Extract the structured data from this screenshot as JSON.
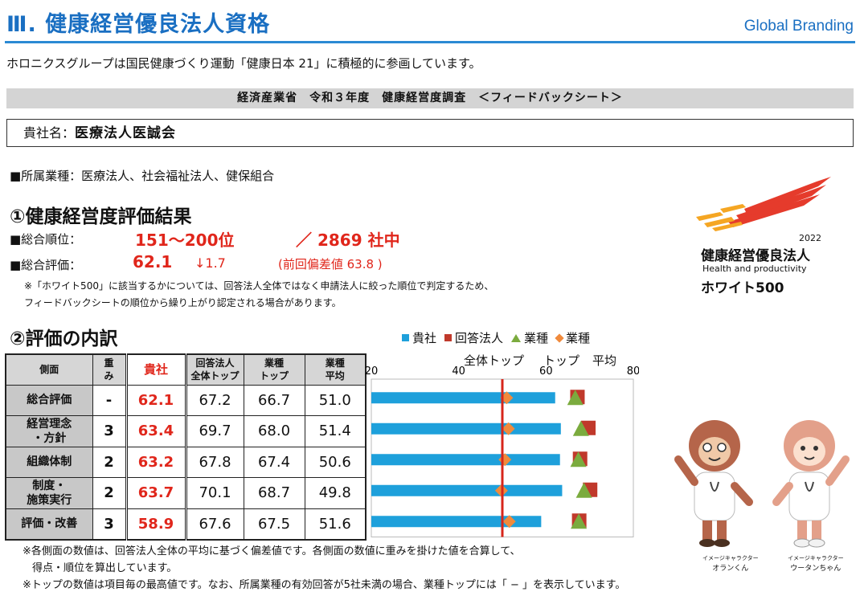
{
  "header": {
    "title": "Ⅲ. 健康経営優良法人資格",
    "brand": "Global Branding"
  },
  "intro": "ホロニクスグループは国民健康づくり運動「健康日本 21」に積極的に参画しています。",
  "banner": "経済産業省　令和３年度　健康経営度調査　＜フィードバックシート＞",
  "company": {
    "label": "貴社名：",
    "name": "医療法人医誠会"
  },
  "industry": "■所属業種：医療法人、社会福祉法人、健保組合",
  "section1": {
    "heading": "①健康経営度評価結果",
    "rank_label": "■総合順位：",
    "rank_value": "151〜200位",
    "rank_total": "／ 2869 社中",
    "score_label": "■総合評価：",
    "score_value": "62.1",
    "score_delta": "↓1.7",
    "score_prev": "(前回偏差値 63.8 )",
    "note_line1": "※「ホワイト500」に該当するかについては、回答法人全体ではなく申請法人に絞った順位で判定するため、",
    "note_line2": "フィードバックシートの順位から繰り上がり認定される場合があります。"
  },
  "logo": {
    "year": "2022",
    "title_jp": "健康経営優良法人",
    "title_en": "Health and productivity",
    "category": "ホワイト500",
    "accent_red": "#e53b2c",
    "accent_orange": "#f5a623"
  },
  "section2": {
    "heading": "②評価の内訳",
    "legend": {
      "own": "貴社",
      "all": "回答法人",
      "ind_top": "業種",
      "ind_avg": "業種"
    },
    "legend_sub": {
      "all": "全体トップ",
      "ind_top": "トップ",
      "ind_avg": "平均"
    },
    "table": {
      "headers": {
        "side": "側面",
        "weight_1": "重",
        "weight_2": "み",
        "own": "貴社",
        "all_top_1": "回答法人",
        "all_top_2": "全体トップ",
        "ind_top_1": "業種",
        "ind_top_2": "トップ",
        "ind_avg_1": "業種",
        "ind_avg_2": "平均"
      },
      "rows": [
        {
          "side_1": "総合評価",
          "side_2": "",
          "weight": "-",
          "own": "62.1",
          "all_top": "67.2",
          "ind_top": "66.7",
          "ind_avg": "51.0"
        },
        {
          "side_1": "経営理念",
          "side_2": "・方針",
          "weight": "3",
          "own": "63.4",
          "all_top": "69.7",
          "ind_top": "68.0",
          "ind_avg": "51.4"
        },
        {
          "side_1": "組織体制",
          "side_2": "",
          "weight": "2",
          "own": "63.2",
          "all_top": "67.8",
          "ind_top": "67.4",
          "ind_avg": "50.6"
        },
        {
          "side_1": "制度・",
          "side_2": "施策実行",
          "weight": "2",
          "own": "63.7",
          "all_top": "70.1",
          "ind_top": "68.7",
          "ind_avg": "49.8"
        },
        {
          "side_1": "評価・改善",
          "side_2": "",
          "weight": "3",
          "own": "58.9",
          "all_top": "67.6",
          "ind_top": "67.5",
          "ind_avg": "51.6"
        }
      ]
    },
    "note_line1": "※各側面の数値は、回答法人全体の平均に基づく偏差値です。各側面の数値に重みを掛けた値を合算して、",
    "note_line2": "得点・順位を算出しています。",
    "note_line3": "※トップの数値は項目毎の最高値です。なお、所属業種の有効回答が5社未満の場合、業種トップには「 − 」を表示しています。"
  },
  "characters": {
    "left_caption_1": "イメージキャラクター",
    "left_caption_2": "オランくん",
    "right_caption_1": "イメージキャラクター",
    "right_caption_2": "ウータンちゃん"
  },
  "colors": {
    "title_blue": "#1a6fc2",
    "own_bar": "#1ea0db",
    "all_top": "#c0392b",
    "ind_top": "#7bab3e",
    "ind_avg": "#f08a3c",
    "reference_line": "#d7261b"
  },
  "chart_data": {
    "type": "bar",
    "orientation": "horizontal",
    "xlim": [
      20,
      80
    ],
    "x_ticks": [
      "20",
      "40",
      "60",
      "80"
    ],
    "reference_line": 50,
    "categories": [
      "総合評価",
      "経営理念・方針",
      "組織体制",
      "制度・施策実行",
      "評価・改善"
    ],
    "series": [
      {
        "name": "貴社",
        "kind": "bar",
        "values": [
          62.1,
          63.4,
          63.2,
          63.7,
          58.9
        ]
      },
      {
        "name": "回答法人全体トップ",
        "kind": "square",
        "values": [
          67.2,
          69.7,
          67.8,
          70.1,
          67.6
        ]
      },
      {
        "name": "業種トップ",
        "kind": "triangle",
        "values": [
          66.7,
          68.0,
          67.4,
          68.7,
          67.5
        ]
      },
      {
        "name": "業種平均",
        "kind": "diamond",
        "values": [
          51.0,
          51.4,
          50.6,
          49.8,
          51.6
        ]
      }
    ]
  }
}
